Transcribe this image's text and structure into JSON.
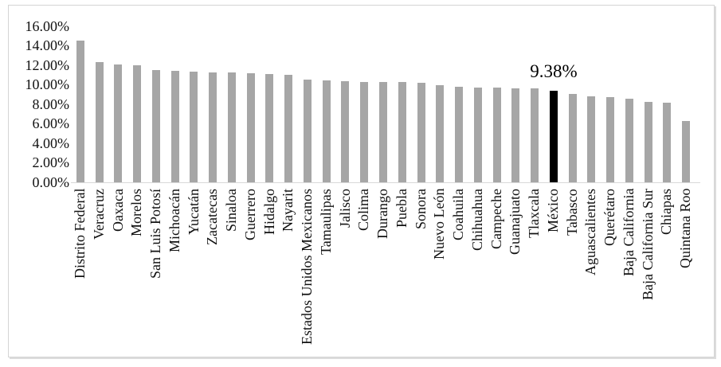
{
  "chart_data": {
    "type": "bar",
    "categories": [
      "Distrito Federal",
      "Veracruz",
      "Oaxaca",
      "Morelos",
      "San Luis Potosí",
      "Michoacán",
      "Yucatán",
      "Zacatecas",
      "Sinaloa",
      "Guerrero",
      "Hidalgo",
      "Nayarit",
      "Estados Unidos Mexicanos",
      "Tamaulipas",
      "Jalisco",
      "Colima",
      "Durango",
      "Puebla",
      "Sonora",
      "Nuevo León",
      "Coahuila",
      "Chihuahua",
      "Campeche",
      "Guanajuato",
      "Tlaxcala",
      "México",
      "Tabasco",
      "Aguascalientes",
      "Querétaro",
      "Baja California",
      "Baja California Sur",
      "Chiapas",
      "Quintana Roo"
    ],
    "values": [
      14.5,
      12.3,
      12.1,
      12.0,
      11.55,
      11.4,
      11.32,
      11.3,
      11.25,
      11.15,
      11.1,
      11.0,
      10.5,
      10.45,
      10.4,
      10.32,
      10.3,
      10.25,
      10.2,
      10.0,
      9.8,
      9.72,
      9.68,
      9.65,
      9.6,
      9.38,
      9.1,
      8.78,
      8.7,
      8.55,
      8.25,
      8.2,
      6.3
    ],
    "highlight_category": "México",
    "highlight_value_label": "9.38%",
    "ytick_labels": [
      "0.00%",
      "2.00%",
      "4.00%",
      "6.00%",
      "8.00%",
      "10.00%",
      "12.00%",
      "14.00%",
      "16.00%"
    ],
    "ylim": [
      0,
      16
    ],
    "grid": false,
    "legend": "none",
    "bar_color": "#a6a6a6",
    "highlight_color": "#000000",
    "axis_line_color": "#d9d9d9",
    "text_color": "#111111"
  }
}
